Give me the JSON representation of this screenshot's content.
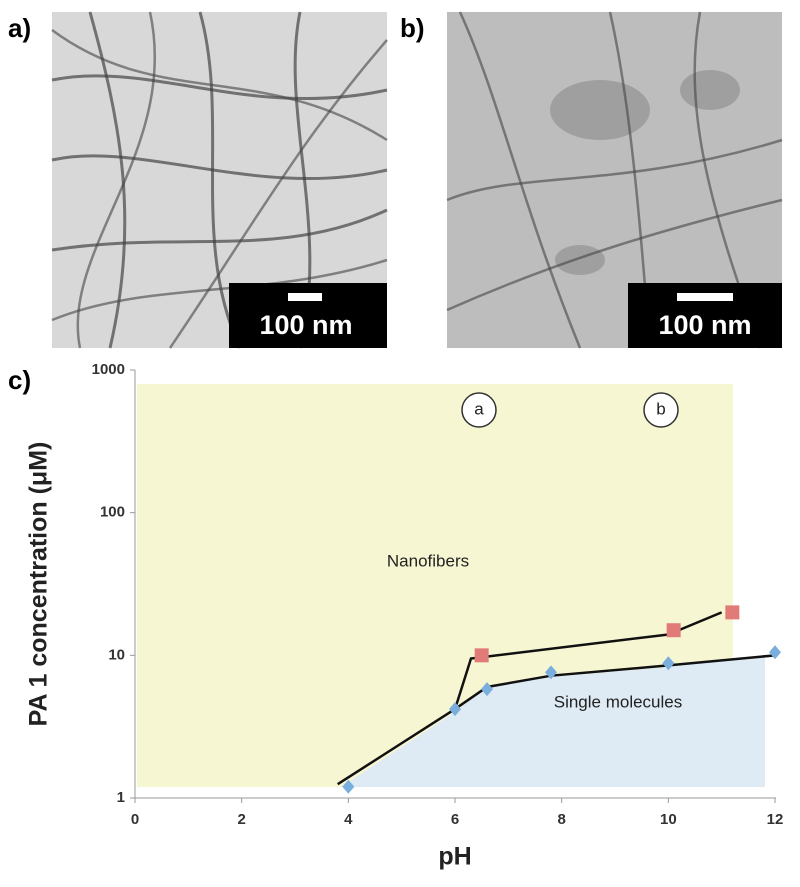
{
  "panels": [
    "a)",
    "b)",
    "c)"
  ],
  "scale_bars": [
    "100 nm",
    "100 nm"
  ],
  "chart_data": {
    "type": "scatter",
    "xlabel": "pH",
    "ylabel": "PA 1 concentration (μM)",
    "xlim": [
      0,
      12
    ],
    "ylim": [
      1,
      1000
    ],
    "log_y": true,
    "xticks": [
      0,
      2,
      4,
      6,
      8,
      10,
      12
    ],
    "yticks": [
      1,
      10,
      100,
      1000
    ],
    "series": [
      {
        "marker": "square",
        "color": "#e07b78",
        "x": [
          6.5,
          10.1,
          11.2
        ],
        "values": [
          10,
          15,
          20
        ]
      },
      {
        "marker": "diamond",
        "color": "#7aaedc",
        "x": [
          4,
          6,
          6.6,
          7.8,
          10,
          12
        ],
        "values": [
          1.2,
          4.2,
          5.8,
          7.6,
          8.8,
          10.5
        ]
      }
    ],
    "lines": [
      {
        "color": "#111111",
        "x": [
          3.8,
          6,
          6.6,
          7.8,
          10,
          12
        ],
        "values": [
          1.25,
          4.2,
          6,
          7.2,
          8.5,
          10
        ]
      },
      {
        "color": "#111111",
        "x": [
          6,
          6.3,
          10,
          11
        ],
        "values": [
          4.2,
          9.5,
          14,
          20
        ]
      }
    ],
    "annotations": [
      "Nanofibers",
      "Single molecules",
      "a",
      "b"
    ]
  }
}
